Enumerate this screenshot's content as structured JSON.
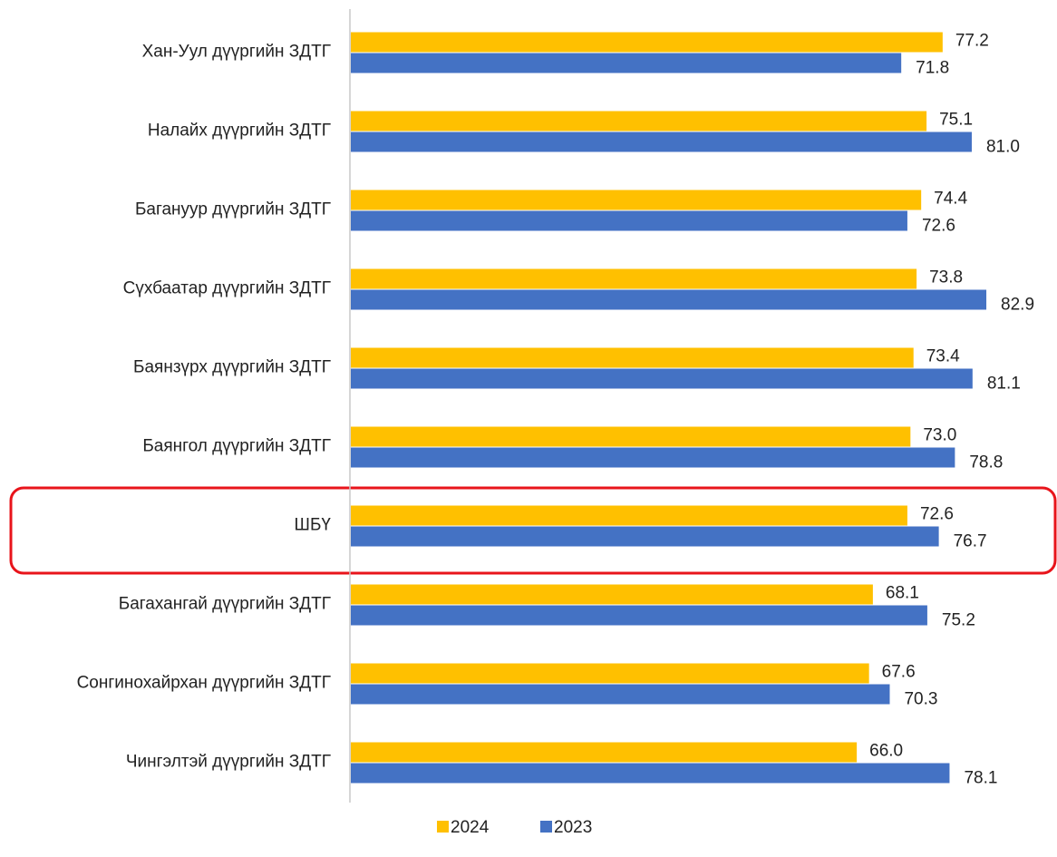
{
  "chart_data": {
    "type": "bar",
    "orientation": "horizontal",
    "categories": [
      "Хан-Уул дүүргийн ЗДТГ",
      "Налайх дүүргийн ЗДТГ",
      "Багануур дүүргийн ЗДТГ",
      "Сүхбаатар дүүргийн ЗДТГ",
      "Баянзүрх дүүргийн ЗДТГ",
      "Баянгол дүүргийн ЗДТГ",
      "ШБҮ",
      "Багахангай дүүргийн ЗДТГ",
      "Сонгинохайрхан дүүргийн ЗДТГ",
      "Чингэлтэй дүүргийн ЗДТГ"
    ],
    "series": [
      {
        "name": "2024",
        "color": "#FFC000",
        "values": [
          77.2,
          75.1,
          74.4,
          73.8,
          73.4,
          73.0,
          72.6,
          68.1,
          67.6,
          66.0
        ],
        "value_labels": [
          "77.2",
          "75.1",
          "74.4",
          "73.8",
          "73.4",
          "73.0",
          "72.6",
          "68.1",
          "67.6",
          "66.0"
        ]
      },
      {
        "name": "2023",
        "color": "#4472C4",
        "values": [
          71.8,
          81.0,
          72.6,
          82.9,
          81.1,
          78.8,
          76.7,
          75.2,
          70.3,
          78.1
        ],
        "value_labels": [
          "71.8",
          "81.0",
          "72.6",
          "82.9",
          "81.1",
          "78.8",
          "76.7",
          "75.2",
          "70.3",
          "78.1"
        ]
      }
    ],
    "xlim": [
      0,
      92
    ],
    "legend": "bottom"
  }
}
